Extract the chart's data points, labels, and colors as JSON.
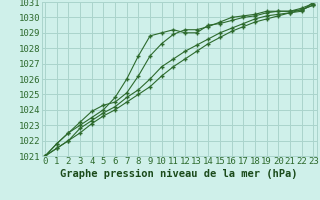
{
  "xlabel": "Graphe pression niveau de la mer (hPa)",
  "x": [
    0,
    1,
    2,
    3,
    4,
    5,
    6,
    7,
    8,
    9,
    10,
    11,
    12,
    13,
    14,
    15,
    16,
    17,
    18,
    19,
    20,
    21,
    22,
    23
  ],
  "line1": [
    1021.0,
    1021.8,
    1022.5,
    1023.0,
    1023.5,
    1024.0,
    1024.8,
    1026.0,
    1027.5,
    1028.8,
    1029.0,
    1029.2,
    1029.0,
    1029.0,
    1029.5,
    1029.6,
    1029.8,
    1030.0,
    1030.1,
    1030.3,
    1030.4,
    1030.4,
    1030.5,
    1030.8
  ],
  "line2": [
    1021.0,
    1021.8,
    1022.5,
    1023.2,
    1023.9,
    1024.3,
    1024.5,
    1025.1,
    1026.2,
    1027.5,
    1028.3,
    1028.9,
    1029.2,
    1029.2,
    1029.4,
    1029.7,
    1030.0,
    1030.1,
    1030.2,
    1030.4,
    1030.4,
    1030.4,
    1030.6,
    1030.9
  ],
  "line3": [
    1021.0,
    1021.5,
    1022.0,
    1022.8,
    1023.3,
    1023.8,
    1024.2,
    1024.8,
    1025.3,
    1026.0,
    1026.8,
    1027.3,
    1027.8,
    1028.2,
    1028.6,
    1029.0,
    1029.3,
    1029.6,
    1029.9,
    1030.1,
    1030.2,
    1030.3,
    1030.5,
    1030.8
  ],
  "line4": [
    1021.0,
    1021.5,
    1022.0,
    1022.5,
    1023.1,
    1023.6,
    1024.0,
    1024.5,
    1025.0,
    1025.5,
    1026.2,
    1026.8,
    1027.3,
    1027.8,
    1028.3,
    1028.7,
    1029.1,
    1029.4,
    1029.7,
    1029.9,
    1030.1,
    1030.3,
    1030.4,
    1031.0
  ],
  "line_color": "#2d6a2d",
  "bg_color": "#cff0ea",
  "grid_color": "#aad4cc",
  "ylim": [
    1021,
    1031
  ],
  "yticks": [
    1021,
    1022,
    1023,
    1024,
    1025,
    1026,
    1027,
    1028,
    1029,
    1030,
    1031
  ],
  "xticks": [
    0,
    1,
    2,
    3,
    4,
    5,
    6,
    7,
    8,
    9,
    10,
    11,
    12,
    13,
    14,
    15,
    16,
    17,
    18,
    19,
    20,
    21,
    22,
    23
  ],
  "xlabel_color": "#1a4a1a",
  "xlabel_fontsize": 7.5,
  "tick_fontsize": 6.5
}
